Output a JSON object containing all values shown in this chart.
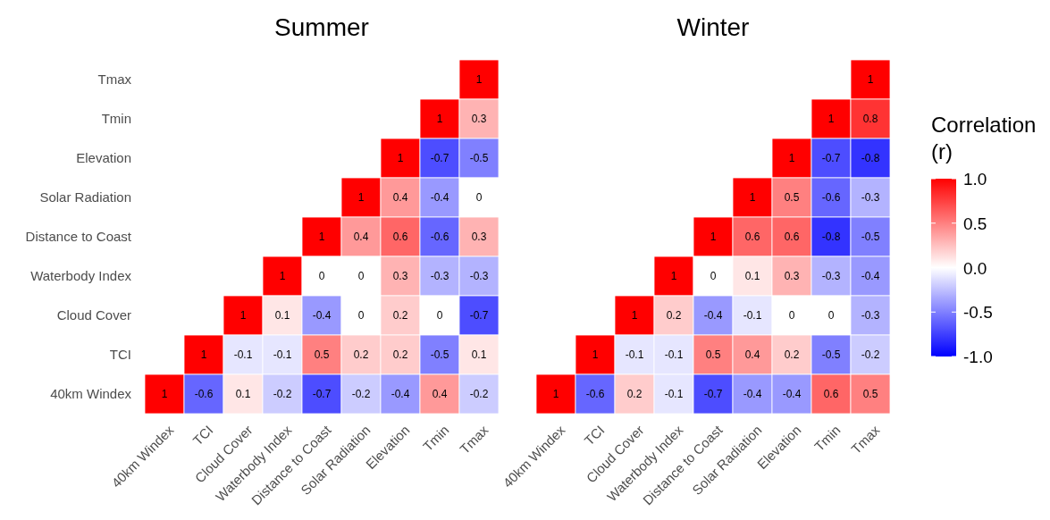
{
  "chart_data": [
    {
      "type": "heatmap",
      "title": "Summer",
      "data_labels": true,
      "categories": [
        "40km Windex",
        "TCI",
        "Cloud Cover",
        "Waterbody Index",
        "Distance to Coast",
        "Solar Radiation",
        "Elevation",
        "Tmin",
        "Tmax"
      ],
      "y_categories": [
        "Tmax",
        "Tmin",
        "Elevation",
        "Solar Radiation",
        "Distance to Coast",
        "Waterbody Index",
        "Cloud Cover",
        "TCI",
        "40km Windex"
      ],
      "cells": [
        [
          null,
          null,
          null,
          null,
          null,
          null,
          null,
          null,
          1
        ],
        [
          null,
          null,
          null,
          null,
          null,
          null,
          null,
          1,
          0.3
        ],
        [
          null,
          null,
          null,
          null,
          null,
          null,
          1,
          -0.7,
          -0.5
        ],
        [
          null,
          null,
          null,
          null,
          null,
          1,
          0.4,
          -0.4,
          0
        ],
        [
          null,
          null,
          null,
          null,
          1,
          0.4,
          0.6,
          -0.6,
          0.3
        ],
        [
          null,
          null,
          null,
          1,
          0,
          0,
          0.3,
          -0.3,
          -0.3
        ],
        [
          null,
          null,
          1,
          0.1,
          -0.4,
          0,
          0.2,
          0,
          -0.7
        ],
        [
          null,
          1,
          -0.1,
          -0.1,
          0.5,
          0.2,
          0.2,
          -0.5,
          0.1
        ],
        [
          1,
          -0.6,
          0.1,
          -0.2,
          -0.7,
          -0.2,
          -0.4,
          0.4,
          -0.2
        ]
      ]
    },
    {
      "type": "heatmap",
      "title": "Winter",
      "data_labels": true,
      "clim": [
        -1,
        1
      ],
      "clabel": "Correlation (r)",
      "y_categories": [
        null,
        null,
        null,
        null,
        null,
        null,
        null,
        null,
        null
      ],
      "cticks": [
        {
          "value": 1,
          "label": "1.0"
        },
        {
          "value": 0.5,
          "label": "0.5"
        },
        {
          "value": 0,
          "label": "0.0"
        },
        {
          "value": -0.5,
          "label": "-0.5"
        },
        {
          "value": -1,
          "label": "-1.0"
        }
      ],
      "categories": [
        "40km Windex",
        "TCI",
        "Cloud Cover",
        "Waterbody Index",
        "Distance to Coast",
        "Solar Radiation",
        "Elevation",
        "Tmin",
        "Tmax"
      ],
      "cells": [
        [
          null,
          null,
          null,
          null,
          null,
          null,
          null,
          null,
          1
        ],
        [
          null,
          null,
          null,
          null,
          null,
          null,
          null,
          1,
          0.8
        ],
        [
          null,
          null,
          null,
          null,
          null,
          null,
          1,
          -0.7,
          -0.8
        ],
        [
          null,
          null,
          null,
          null,
          null,
          1,
          0.5,
          -0.6,
          -0.3
        ],
        [
          null,
          null,
          null,
          null,
          1,
          0.6,
          0.6,
          -0.8,
          -0.5
        ],
        [
          null,
          null,
          null,
          1,
          0,
          0.1,
          0.3,
          -0.3,
          -0.4
        ],
        [
          null,
          null,
          1,
          0.2,
          -0.4,
          -0.1,
          0,
          0,
          -0.3
        ],
        [
          null,
          1,
          -0.1,
          -0.1,
          0.5,
          0.4,
          0.2,
          -0.5,
          -0.2
        ],
        [
          1,
          -0.6,
          0.2,
          -0.1,
          -0.7,
          -0.4,
          -0.4,
          0.6,
          0.5
        ]
      ]
    }
  ]
}
